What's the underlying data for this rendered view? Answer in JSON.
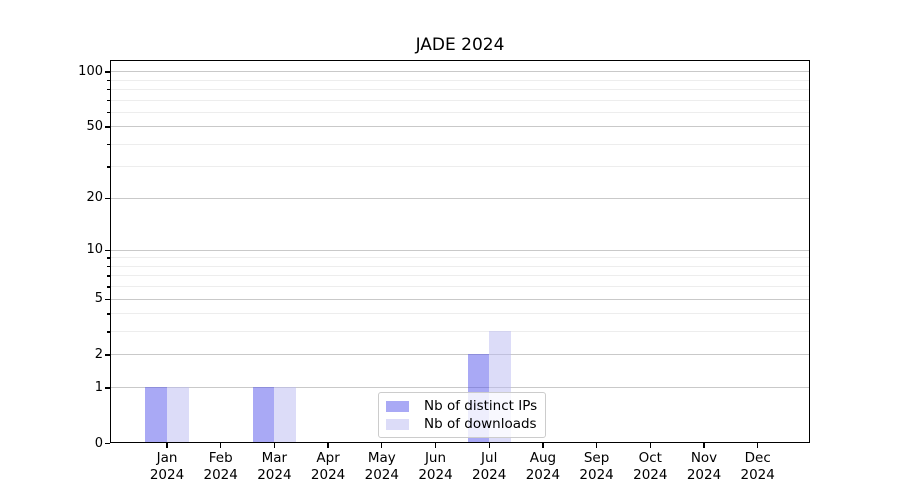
{
  "chart_data": {
    "type": "bar",
    "title": "JADE 2024",
    "scale": "log1p",
    "categories": [
      "Jan",
      "Feb",
      "Mar",
      "Apr",
      "May",
      "Jun",
      "Jul",
      "Aug",
      "Sep",
      "Oct",
      "Nov",
      "Dec"
    ],
    "year_label": "2024",
    "series": [
      {
        "name": "Nb of distinct IPs",
        "color": "#a9a9f5",
        "color_rgba": "rgba(83,83,235,0.5)",
        "values": [
          1,
          0,
          1,
          0,
          0,
          0,
          2,
          0,
          0,
          0,
          0,
          0
        ]
      },
      {
        "name": "Nb of downloads",
        "color": "#dcdcf8",
        "color_rgba": "rgba(185,185,241,0.5)",
        "values": [
          1,
          0,
          1,
          0,
          0,
          0,
          3,
          0,
          0,
          0,
          0,
          0
        ]
      }
    ],
    "y_major_ticks": [
      0,
      1,
      2,
      5,
      10,
      20,
      50,
      100
    ],
    "y_minor_ticks": [
      3,
      4,
      6,
      7,
      8,
      9,
      30,
      40,
      60,
      70,
      80,
      90
    ],
    "ylim": [
      0,
      115
    ],
    "xlabel": "",
    "ylabel": "",
    "grid": "on",
    "legend_position": "lower-center-inside"
  }
}
